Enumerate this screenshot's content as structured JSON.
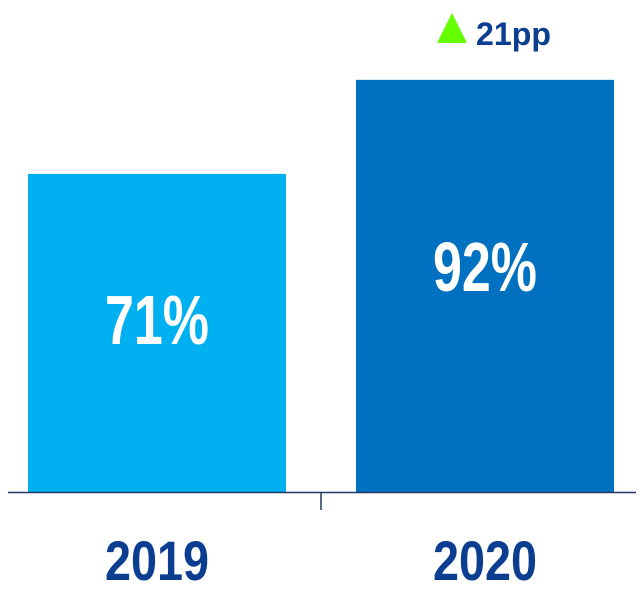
{
  "colors": {
    "bar_2019": "#00b0f0",
    "bar_2020": "#0070c0",
    "category_text": "#0b3d91",
    "axis": "#1f3864",
    "delta_arrow": "#66ff00",
    "delta_text": "#0b3d91"
  },
  "chart_data": {
    "type": "bar",
    "categories": [
      "2019",
      "2020"
    ],
    "values": [
      71,
      92
    ],
    "value_labels": [
      "71%",
      "92%"
    ],
    "ylim": [
      0,
      100
    ],
    "grid": false,
    "annotations": [
      {
        "category": "2020",
        "text": "21pp",
        "icon": "up-triangle-icon"
      }
    ]
  }
}
